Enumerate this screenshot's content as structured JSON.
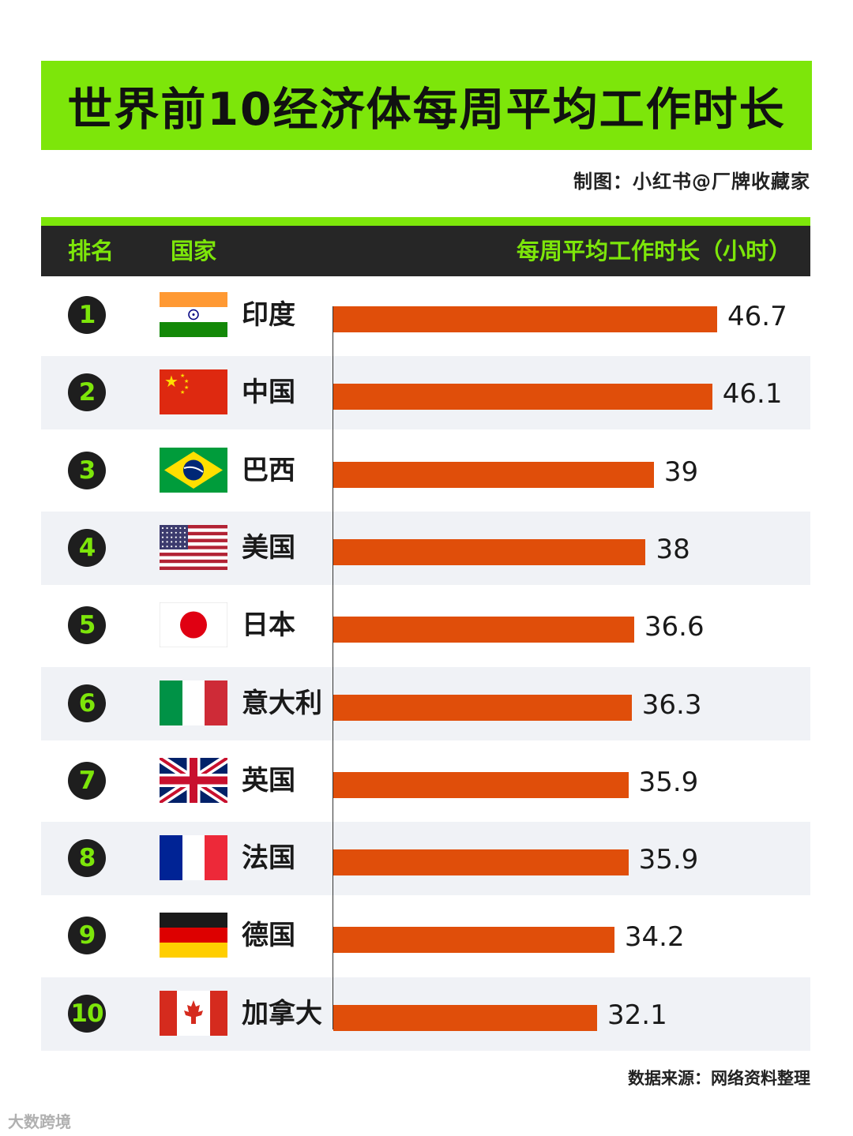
{
  "title": "世界前10经济体每周平均工作时长",
  "credit": "制图：小红书@厂牌收藏家",
  "header": {
    "rank": "排名",
    "country": "国家",
    "hours": "每周平均工作时长（小时）"
  },
  "source": "数据来源：网络资料整理",
  "watermark": "大数跨境",
  "colors": {
    "accent": "#7de60a",
    "bar": "#e04e0a",
    "header_bg": "#262626",
    "alt_row": "#f0f2f6"
  },
  "chart_data": {
    "type": "bar",
    "orientation": "horizontal",
    "title": "世界前10经济体每周平均工作时长",
    "ylabel": "每周平均工作时长（小时）",
    "categories": [
      "印度",
      "中国",
      "巴西",
      "美国",
      "日本",
      "意大利",
      "英国",
      "法国",
      "德国",
      "加拿大"
    ],
    "ranks": [
      "1",
      "2",
      "3",
      "4",
      "5",
      "6",
      "7",
      "8",
      "9",
      "10"
    ],
    "flags": [
      "india-flag",
      "china-flag",
      "brazil-flag",
      "usa-flag",
      "japan-flag",
      "italy-flag",
      "uk-flag",
      "france-flag",
      "germany-flag",
      "canada-flag"
    ],
    "values": [
      46.7,
      46.1,
      39,
      38,
      36.6,
      36.3,
      35.9,
      35.9,
      34.2,
      32.1
    ],
    "value_labels": [
      "46.7",
      "46.1",
      "39",
      "38",
      "36.6",
      "36.3",
      "35.9",
      "35.9",
      "34.2",
      "32.1"
    ],
    "xlim": [
      0,
      50
    ],
    "grid": false,
    "legend": "none"
  }
}
